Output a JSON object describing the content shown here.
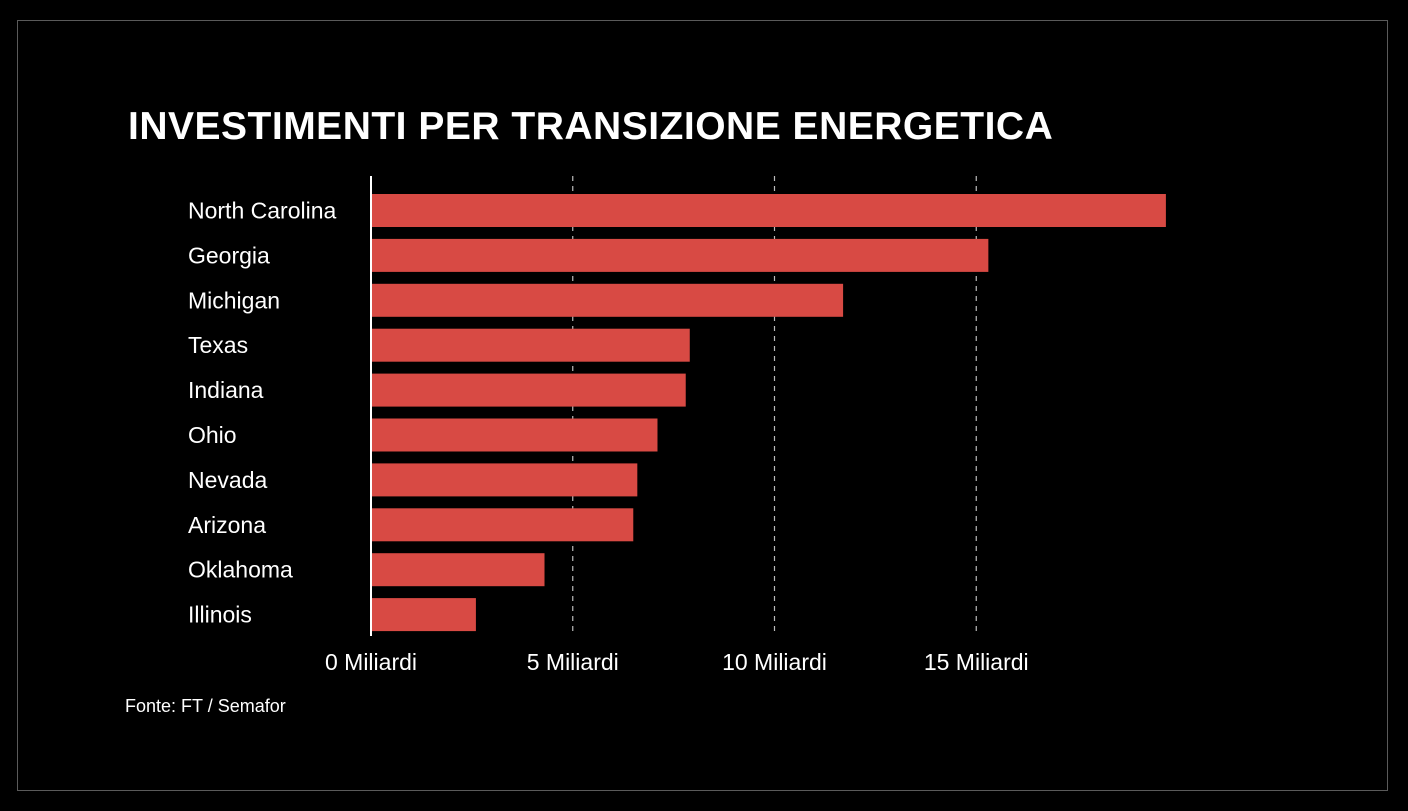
{
  "chart_data": {
    "type": "bar",
    "orientation": "horizontal",
    "title": "INVESTIMENTI PER TRANSIZIONE ENERGETICA",
    "categories": [
      "North Carolina",
      "Georgia",
      "Michigan",
      "Texas",
      "Indiana",
      "Ohio",
      "Nevada",
      "Arizona",
      "Oklahoma",
      "Illinois"
    ],
    "values": [
      19.7,
      15.3,
      11.7,
      7.9,
      7.8,
      7.1,
      6.6,
      6.5,
      4.3,
      2.6
    ],
    "x_ticks": [
      0,
      5,
      10,
      15
    ],
    "tick_labels": [
      "0 Miliardi",
      "5 Miliardi",
      "10 Miliardi",
      "15 Miliardi"
    ],
    "xlim": [
      0,
      20
    ],
    "xlabel": "",
    "ylabel": "",
    "grid": "vertical dashed",
    "bar_color": "#d84a44",
    "gridline_color": "#bbbbbb"
  },
  "source": "Fonte: FT / Semafor"
}
